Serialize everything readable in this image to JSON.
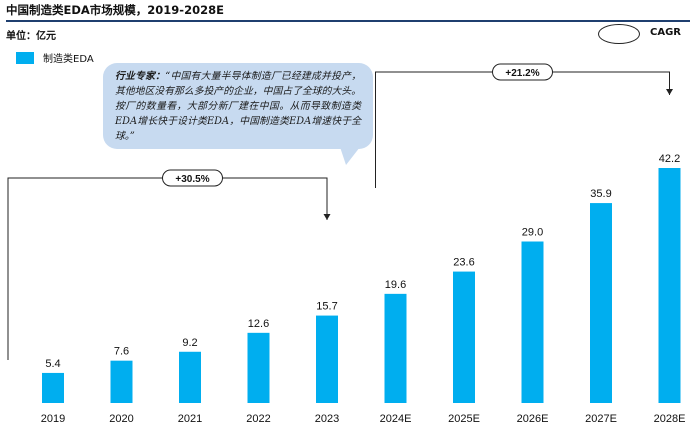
{
  "title": "中国制造类EDA市场规模，2019-2028E",
  "unit": "单位：亿元",
  "legend_label": "制造类EDA",
  "cagr_label": "CAGR",
  "expert": {
    "label": "行业专家：",
    "quote": "“中国有大量半导体制造厂已经建成并投产，其他地区没有那么多投产的企业，中国占了全球的大头。按厂的数量看，大部分新厂建在中国。从而导致制造类EDA增长快于设计类EDA，中国制造类EDA增速快于全球。”"
  },
  "colors": {
    "bar": "#00aeef",
    "bubble": "#c7daf0"
  },
  "chart_data": {
    "type": "bar",
    "title": "中国制造类EDA市场规模，2019-2028E",
    "ylabel": "单位：亿元",
    "categories": [
      "2019",
      "2020",
      "2021",
      "2022",
      "2023",
      "2024E",
      "2025E",
      "2026E",
      "2027E",
      "2028E"
    ],
    "series": [
      {
        "name": "制造类EDA",
        "values": [
          5.4,
          7.6,
          9.2,
          12.6,
          15.7,
          19.6,
          23.6,
          29.0,
          35.9,
          42.2
        ]
      }
    ],
    "ylim": [
      0,
      45
    ],
    "grid": false,
    "legend": "top-left",
    "annotations": [
      {
        "label": "+30.5%",
        "from": "2019",
        "to": "2023"
      },
      {
        "label": "+21.2%",
        "from": "2024E",
        "to": "2028E"
      }
    ]
  }
}
